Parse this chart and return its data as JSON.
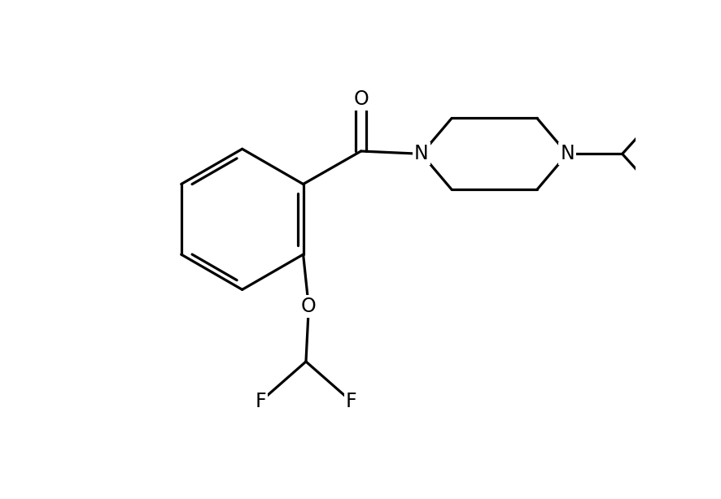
{
  "background_color": "#ffffff",
  "line_color": "#000000",
  "line_width": 2.3,
  "font_size": 17,
  "fig_width": 8.86,
  "fig_height": 6.14,
  "xlim": [
    0,
    10
  ],
  "ylim": [
    0,
    9
  ]
}
